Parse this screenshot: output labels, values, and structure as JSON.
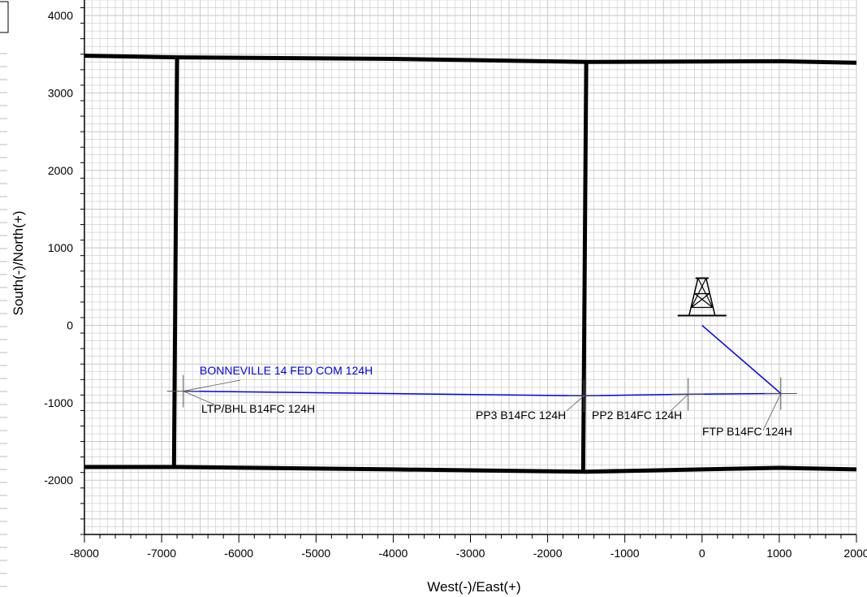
{
  "chart_data": {
    "type": "line",
    "xlabel": "West(-)/East(+)",
    "ylabel": "South(-)/North(+)",
    "xlim": [
      -8000,
      2000
    ],
    "ylim": [
      -2700,
      4200
    ],
    "x_ticks": [
      -8000,
      -7000,
      -6000,
      -5000,
      -4000,
      -3000,
      -2000,
      -1000,
      0,
      1000,
      2000
    ],
    "y_ticks": [
      -2000,
      -1000,
      0,
      1000,
      2000,
      3000,
      4000
    ],
    "x_tick_labels": [
      "-8000",
      "-7000",
      "-6000",
      "-5000",
      "-4000",
      "-3000",
      "-2000",
      "-1000",
      "0",
      "1000",
      "2000"
    ],
    "y_tick_labels": [
      "-2000",
      "-1000",
      "0",
      "1000",
      "2000",
      "3000",
      "4000"
    ],
    "grid": true,
    "colors": {
      "wellbore": "#0000ee",
      "lease_lines": "#000000",
      "grid": "#c8c8c8"
    },
    "lease_lines": [
      {
        "points": [
          [
            -8000,
            3480
          ],
          [
            -6800,
            3460
          ],
          [
            -4000,
            3440
          ],
          [
            -1500,
            3400
          ],
          [
            1000,
            3410
          ],
          [
            2000,
            3390
          ]
        ]
      },
      {
        "points": [
          [
            -8000,
            -1830
          ],
          [
            -6800,
            -1830
          ],
          [
            -4000,
            -1860
          ],
          [
            -1500,
            -1890
          ],
          [
            1000,
            -1840
          ],
          [
            2000,
            -1860
          ]
        ]
      },
      {
        "points": [
          [
            -6800,
            3460
          ],
          [
            -6840,
            -1830
          ]
        ]
      },
      {
        "points": [
          [
            -1500,
            3400
          ],
          [
            -1540,
            -1890
          ]
        ]
      }
    ],
    "series": [
      {
        "name": "BONNEVILLE 14 FED COM 124H",
        "x": [
          0,
          1020,
          -180,
          -1530,
          -6720
        ],
        "y": [
          0,
          -880,
          -890,
          -910,
          -850
        ]
      }
    ],
    "well_symbol": {
      "x": 0,
      "y": 0,
      "icon": "drilling-rig-icon"
    },
    "targets": [
      {
        "name": "FTP B14FC 124H",
        "x": 1020,
        "y": -880
      },
      {
        "name": "PP2 B14FC 124H",
        "x": -180,
        "y": -890
      },
      {
        "name": "PP3 B14FC 124H",
        "x": -1530,
        "y": -910
      },
      {
        "name": "LTP/BHL B14FC 124H",
        "x": -6720,
        "y": -850
      }
    ]
  }
}
